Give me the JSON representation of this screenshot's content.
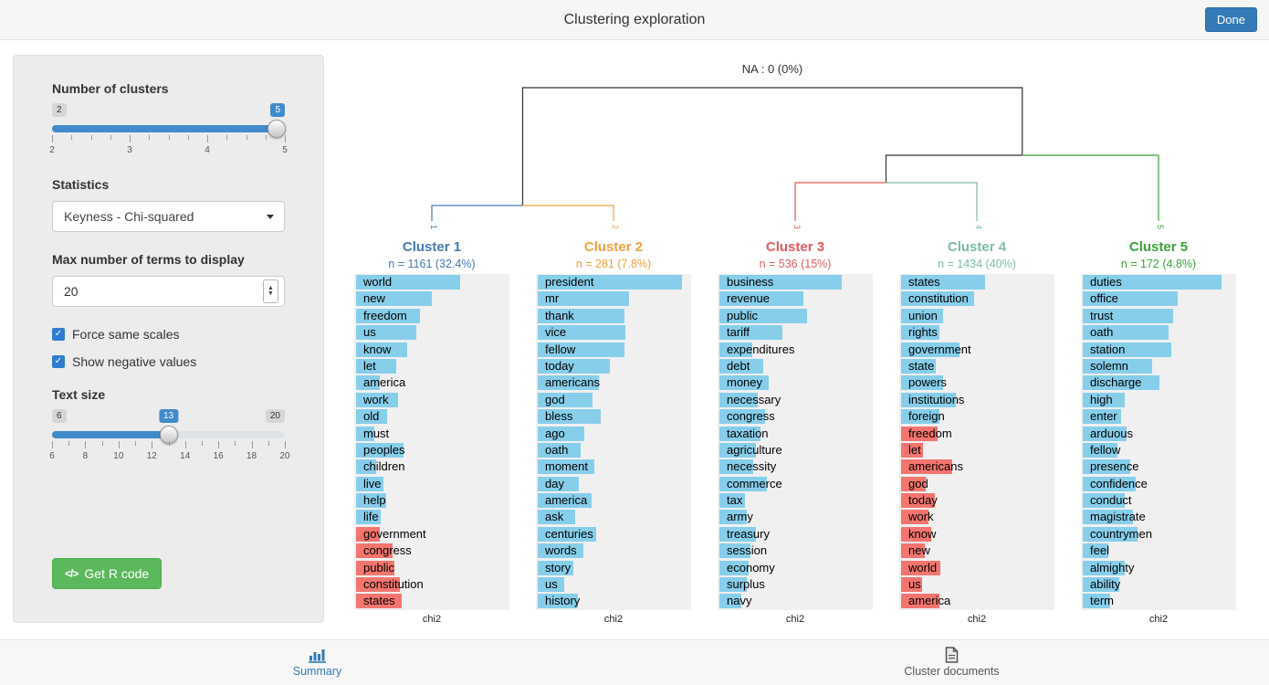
{
  "header": {
    "title": "Clustering exploration",
    "done_label": "Done"
  },
  "sidebar": {
    "clusters_label": "Number of clusters",
    "clusters_slider": {
      "min": "2",
      "max": "5",
      "value": "5",
      "ticks": [
        "2",
        "3",
        "4",
        "5"
      ]
    },
    "statistics_label": "Statistics",
    "statistics_value": "Keyness - Chi-squared",
    "max_terms_label": "Max number of terms to display",
    "max_terms_value": "20",
    "checkbox_same_scales": "Force same scales",
    "checkbox_negative": "Show negative values",
    "text_size_label": "Text size",
    "text_size_slider": {
      "min": "6",
      "max": "20",
      "value": "13",
      "ticks": [
        "6",
        "8",
        "10",
        "12",
        "14",
        "16",
        "18",
        "20"
      ]
    },
    "get_r_code_label": "Get R code",
    "code_icon_text": "</>"
  },
  "footer": {
    "tabs": [
      {
        "label": "Summary",
        "active": true
      },
      {
        "label": "Cluster documents",
        "active": false
      }
    ]
  },
  "colors": {
    "positive_bar": "#87CEEB",
    "negative_bar": "#F4756F",
    "slider_blue": "#428bca",
    "checkbox_blue": "#2E7DD1",
    "button_green": "#5CB85C",
    "done_blue": "#337AB7",
    "active_tab_blue": "#337AB7",
    "dendrogram_trunk": "#333333"
  },
  "chart_data": {
    "type": "bar",
    "title": "Keyness (chi2) per cluster with dendrogram",
    "na_label": "NA : 0 (0%)",
    "xlabel": "chi2",
    "shared_scale": true,
    "clusters": [
      {
        "name": "Cluster 1",
        "leaf": "1",
        "n_label": "n = 1161 (32.4%)",
        "color": "#4679B2",
        "terms": [
          {
            "t": "world",
            "v": 114,
            "neg": false
          },
          {
            "t": "new",
            "v": 83,
            "neg": false
          },
          {
            "t": "freedom",
            "v": 70,
            "neg": false
          },
          {
            "t": "us",
            "v": 66,
            "neg": false
          },
          {
            "t": "know",
            "v": 56,
            "neg": false
          },
          {
            "t": "let",
            "v": 44,
            "neg": false
          },
          {
            "t": "america",
            "v": 26,
            "neg": false
          },
          {
            "t": "work",
            "v": 46,
            "neg": false
          },
          {
            "t": "old",
            "v": 34,
            "neg": false
          },
          {
            "t": "must",
            "v": 20,
            "neg": false
          },
          {
            "t": "peoples",
            "v": 52,
            "neg": false
          },
          {
            "t": "children",
            "v": 22,
            "neg": false
          },
          {
            "t": "live",
            "v": 30,
            "neg": false
          },
          {
            "t": "help",
            "v": 33,
            "neg": false
          },
          {
            "t": "life",
            "v": 27,
            "neg": false
          },
          {
            "t": "government",
            "v": 26,
            "neg": true
          },
          {
            "t": "congress",
            "v": 40,
            "neg": true
          },
          {
            "t": "public",
            "v": 42,
            "neg": true
          },
          {
            "t": "constitution",
            "v": 48,
            "neg": true
          },
          {
            "t": "states",
            "v": 50,
            "neg": true
          }
        ]
      },
      {
        "name": "Cluster 2",
        "leaf": "2",
        "n_label": "n = 281 (7.8%)",
        "color": "#F0A13C",
        "terms": [
          {
            "t": "president",
            "v": 158,
            "neg": false
          },
          {
            "t": "mr",
            "v": 100,
            "neg": false
          },
          {
            "t": "thank",
            "v": 95,
            "neg": false
          },
          {
            "t": "vice",
            "v": 96,
            "neg": false
          },
          {
            "t": "fellow",
            "v": 95,
            "neg": false
          },
          {
            "t": "today",
            "v": 79,
            "neg": false
          },
          {
            "t": "americans",
            "v": 67,
            "neg": false
          },
          {
            "t": "god",
            "v": 60,
            "neg": false
          },
          {
            "t": "bless",
            "v": 69,
            "neg": false
          },
          {
            "t": "ago",
            "v": 51,
            "neg": false
          },
          {
            "t": "oath",
            "v": 47,
            "neg": false
          },
          {
            "t": "moment",
            "v": 62,
            "neg": false
          },
          {
            "t": "day",
            "v": 45,
            "neg": false
          },
          {
            "t": "america",
            "v": 59,
            "neg": false
          },
          {
            "t": "ask",
            "v": 41,
            "neg": false
          },
          {
            "t": "centuries",
            "v": 64,
            "neg": false
          },
          {
            "t": "words",
            "v": 50,
            "neg": false
          },
          {
            "t": "story",
            "v": 39,
            "neg": false
          },
          {
            "t": "us",
            "v": 29,
            "neg": false
          },
          {
            "t": "history",
            "v": 44,
            "neg": false
          }
        ]
      },
      {
        "name": "Cluster 3",
        "leaf": "3",
        "n_label": "n = 536 (15%)",
        "color": "#E25A5C",
        "terms": [
          {
            "t": "business",
            "v": 134,
            "neg": false
          },
          {
            "t": "revenue",
            "v": 92,
            "neg": false
          },
          {
            "t": "public",
            "v": 96,
            "neg": false
          },
          {
            "t": "tariff",
            "v": 69,
            "neg": false
          },
          {
            "t": "expenditures",
            "v": 36,
            "neg": false
          },
          {
            "t": "debt",
            "v": 48,
            "neg": false
          },
          {
            "t": "money",
            "v": 54,
            "neg": false
          },
          {
            "t": "necessary",
            "v": 42,
            "neg": false
          },
          {
            "t": "congress",
            "v": 50,
            "neg": false
          },
          {
            "t": "taxation",
            "v": 45,
            "neg": false
          },
          {
            "t": "agriculture",
            "v": 40,
            "neg": false
          },
          {
            "t": "necessity",
            "v": 37,
            "neg": false
          },
          {
            "t": "commerce",
            "v": 52,
            "neg": false
          },
          {
            "t": "tax",
            "v": 28,
            "neg": false
          },
          {
            "t": "army",
            "v": 30,
            "neg": false
          },
          {
            "t": "treasury",
            "v": 40,
            "neg": false
          },
          {
            "t": "session",
            "v": 34,
            "neg": false
          },
          {
            "t": "economy",
            "v": 32,
            "neg": false
          },
          {
            "t": "surplus",
            "v": 30,
            "neg": false
          },
          {
            "t": "navy",
            "v": 24,
            "neg": false
          }
        ]
      },
      {
        "name": "Cluster 4",
        "leaf": "4",
        "n_label": "n = 1434 (40%)",
        "color": "#7CB9A8",
        "terms": [
          {
            "t": "states",
            "v": 92,
            "neg": false
          },
          {
            "t": "constitution",
            "v": 80,
            "neg": false
          },
          {
            "t": "union",
            "v": 46,
            "neg": false
          },
          {
            "t": "rights",
            "v": 42,
            "neg": false
          },
          {
            "t": "government",
            "v": 64,
            "neg": false
          },
          {
            "t": "state",
            "v": 38,
            "neg": false
          },
          {
            "t": "powers",
            "v": 46,
            "neg": false
          },
          {
            "t": "institutions",
            "v": 60,
            "neg": false
          },
          {
            "t": "foreign",
            "v": 42,
            "neg": false
          },
          {
            "t": "freedom",
            "v": 40,
            "neg": true
          },
          {
            "t": "let",
            "v": 24,
            "neg": true
          },
          {
            "t": "americans",
            "v": 56,
            "neg": true
          },
          {
            "t": "god",
            "v": 27,
            "neg": true
          },
          {
            "t": "today",
            "v": 37,
            "neg": true
          },
          {
            "t": "work",
            "v": 30,
            "neg": true
          },
          {
            "t": "know",
            "v": 33,
            "neg": true
          },
          {
            "t": "new",
            "v": 26,
            "neg": true
          },
          {
            "t": "world",
            "v": 43,
            "neg": true
          },
          {
            "t": "us",
            "v": 23,
            "neg": true
          },
          {
            "t": "america",
            "v": 42,
            "neg": true
          }
        ]
      },
      {
        "name": "Cluster 5",
        "leaf": "5",
        "n_label": "n = 172 (4.8%)",
        "color": "#39A339",
        "terms": [
          {
            "t": "duties",
            "v": 152,
            "neg": false
          },
          {
            "t": "office",
            "v": 104,
            "neg": false
          },
          {
            "t": "trust",
            "v": 99,
            "neg": false
          },
          {
            "t": "oath",
            "v": 94,
            "neg": false
          },
          {
            "t": "station",
            "v": 97,
            "neg": false
          },
          {
            "t": "solemn",
            "v": 76,
            "neg": false
          },
          {
            "t": "discharge",
            "v": 84,
            "neg": false
          },
          {
            "t": "high",
            "v": 46,
            "neg": false
          },
          {
            "t": "enter",
            "v": 42,
            "neg": false
          },
          {
            "t": "arduous",
            "v": 48,
            "neg": false
          },
          {
            "t": "fellow",
            "v": 38,
            "neg": false
          },
          {
            "t": "presence",
            "v": 52,
            "neg": false
          },
          {
            "t": "confidence",
            "v": 58,
            "neg": false
          },
          {
            "t": "conduct",
            "v": 46,
            "neg": false
          },
          {
            "t": "magistrate",
            "v": 55,
            "neg": false
          },
          {
            "t": "countrymen",
            "v": 60,
            "neg": false
          },
          {
            "t": "feel",
            "v": 28,
            "neg": false
          },
          {
            "t": "almighty",
            "v": 46,
            "neg": false
          },
          {
            "t": "ability",
            "v": 40,
            "neg": false
          },
          {
            "t": "term",
            "v": 30,
            "neg": false
          }
        ]
      }
    ]
  }
}
